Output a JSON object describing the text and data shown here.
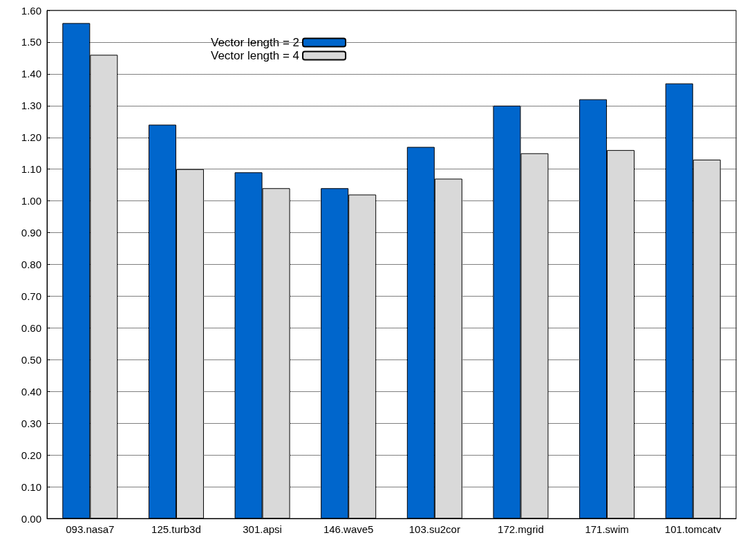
{
  "chart_data": {
    "type": "bar",
    "categories": [
      "093.nasa7",
      "125.turb3d",
      "301.apsi",
      "146.wave5",
      "103.su2cor",
      "172.mgrid",
      "171.swim",
      "101.tomcatv"
    ],
    "series": [
      {
        "name": "Vector length = 2",
        "color": "#0066cc",
        "values": [
          1.56,
          1.24,
          1.09,
          1.04,
          1.17,
          1.3,
          1.32,
          1.37
        ]
      },
      {
        "name": "Vector length = 4",
        "color": "#d9d9d9",
        "values": [
          1.46,
          1.1,
          1.04,
          1.02,
          1.07,
          1.15,
          1.16,
          1.13
        ]
      }
    ],
    "ylim": [
      0,
      1.6
    ],
    "yticks": [
      {
        "value": 0,
        "label": "0.00"
      },
      {
        "value": 0.1,
        "label": "0.10"
      },
      {
        "value": 0.2,
        "label": "0.20"
      },
      {
        "value": 0.3,
        "label": "0.30"
      },
      {
        "value": 0.4,
        "label": "0.40"
      },
      {
        "value": 0.5,
        "label": "0.50"
      },
      {
        "value": 0.6,
        "label": "0.60"
      },
      {
        "value": 0.7,
        "label": "0.70"
      },
      {
        "value": 0.8,
        "label": "0.80"
      },
      {
        "value": 0.9,
        "label": "0.90"
      },
      {
        "value": 1.0,
        "label": "1.00"
      },
      {
        "value": 1.1,
        "label": "1.10"
      },
      {
        "value": 1.2,
        "label": "1.20"
      },
      {
        "value": 1.3,
        "label": "1.30"
      },
      {
        "value": 1.4,
        "label": "1.40"
      },
      {
        "value": 1.5,
        "label": "1.50"
      },
      {
        "value": 1.6,
        "label": "1.60"
      }
    ],
    "grid": "y",
    "legend": "top"
  }
}
